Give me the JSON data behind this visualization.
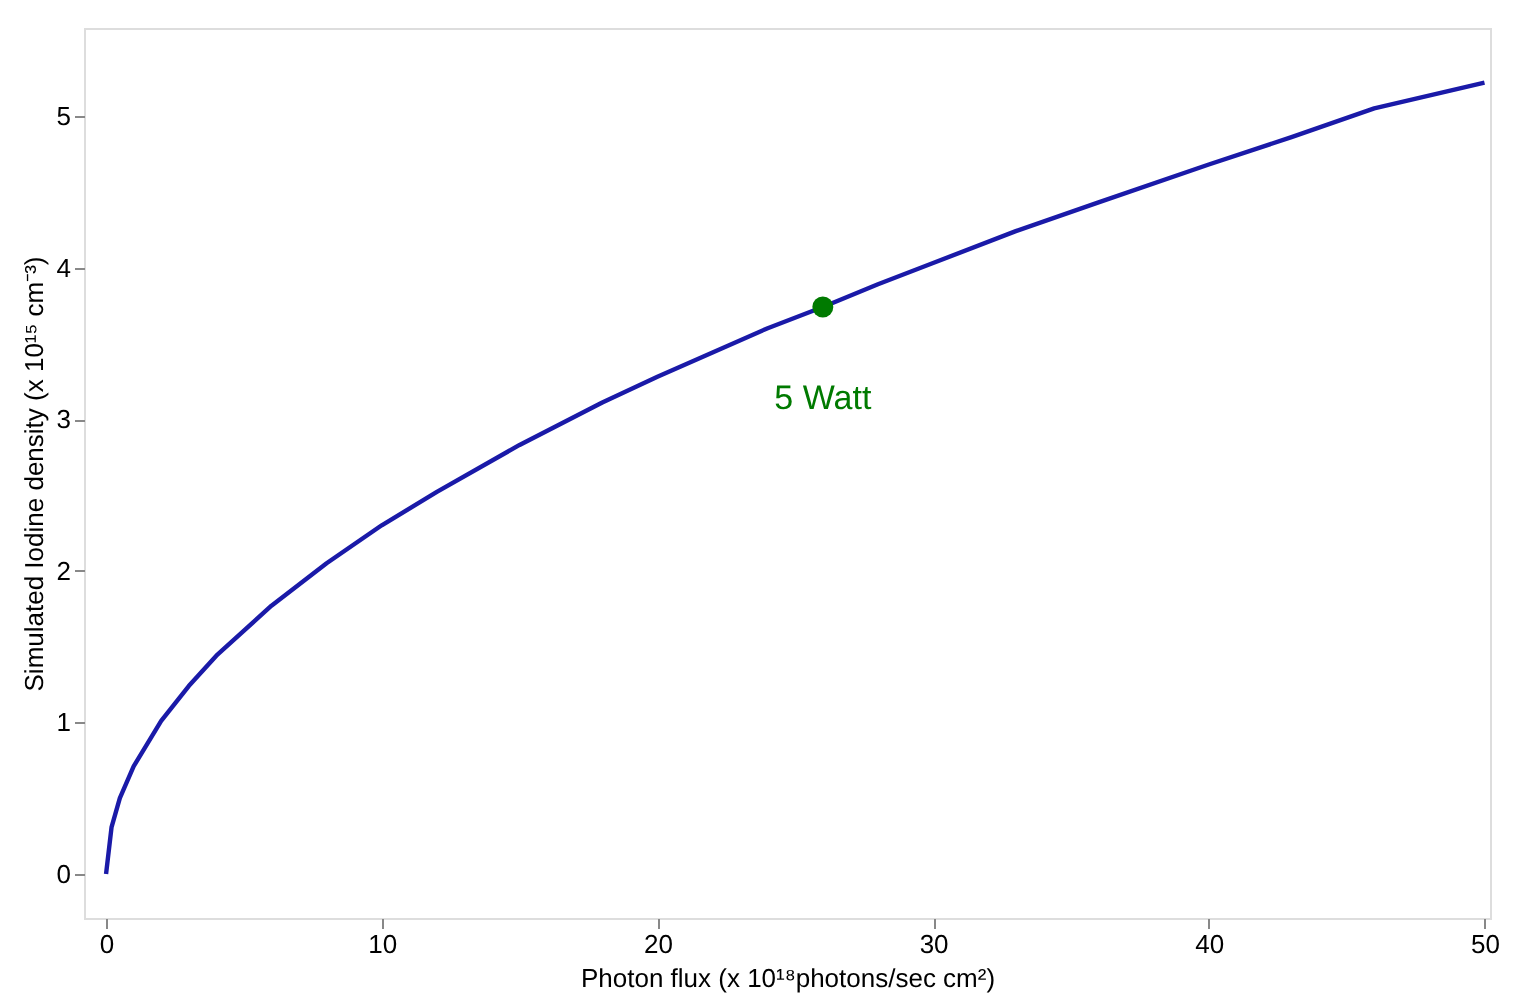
{
  "chart_data": {
    "type": "line",
    "xlabel": "Photon flux (x 10¹⁸photons/sec cm²)",
    "ylabel": "Simulated Iodine density (x 10¹⁵ cm⁻³)",
    "xlim": [
      -0.8,
      50.2
    ],
    "ylim": [
      -0.29,
      5.58
    ],
    "xticks": [
      0,
      10,
      20,
      30,
      40,
      50
    ],
    "yticks": [
      0,
      1,
      2,
      3,
      4,
      5
    ],
    "grid": false,
    "marker": "none",
    "line_style": "solid",
    "series": [
      {
        "color": "#1a1aa8",
        "x": [
          0,
          0.2,
          0.5,
          1,
          2,
          3,
          4,
          6,
          8,
          10,
          12,
          15,
          18,
          20,
          22,
          24,
          26,
          28,
          30,
          33,
          36,
          40,
          43,
          46,
          50
        ],
        "values": [
          0,
          0.31,
          0.5,
          0.71,
          1.01,
          1.24,
          1.44,
          1.77,
          2.05,
          2.3,
          2.52,
          2.83,
          3.11,
          3.28,
          3.44,
          3.6,
          3.74,
          3.89,
          4.03,
          4.24,
          4.43,
          4.68,
          4.86,
          5.05,
          5.22
        ]
      },
      {
        "type": "scatter",
        "name": "5 Watt",
        "color": "#007a00",
        "marker": "circle",
        "x": [
          26
        ],
        "values": [
          3.74
        ]
      }
    ]
  }
}
